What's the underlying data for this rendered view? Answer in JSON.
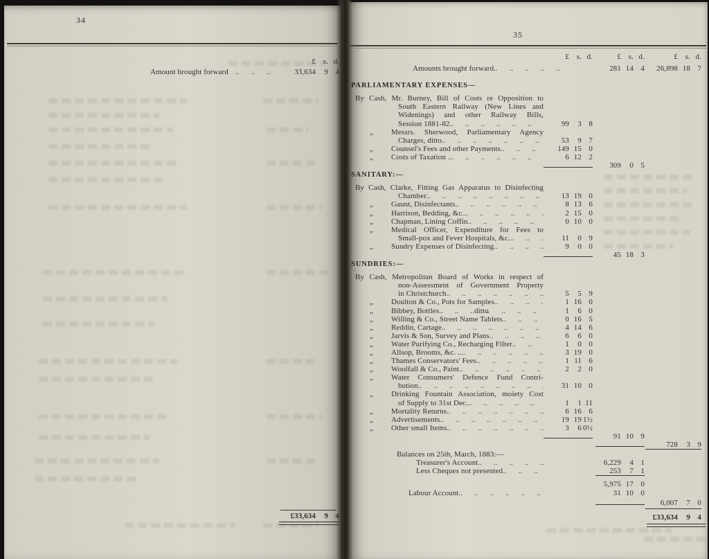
{
  "left_page": {
    "page_number": "34",
    "column_headers": {
      "pounds": "£",
      "shillings": "s.",
      "pence": "d."
    },
    "brought_forward": {
      "label": "Amount brought forward",
      "amount": [
        "33,634",
        "9",
        "4"
      ]
    },
    "total": [
      "£33,634",
      "9",
      "4"
    ]
  },
  "right_page": {
    "page_number": "35",
    "ditto_mark": "„",
    "leader_glyph": "..",
    "column_headers": [
      {
        "pounds": "£",
        "shillings": "s.",
        "pence": "d."
      },
      {
        "pounds": "£",
        "shillings": "s.",
        "pence": "d."
      },
      {
        "pounds": "£",
        "shillings": "s.",
        "pence": "d."
      }
    ],
    "brought_forward": {
      "label": "Amounts brought forward",
      "col2": [
        "281",
        "14",
        "4"
      ],
      "col3": [
        "26,898",
        "18",
        "7"
      ]
    },
    "sections": [
      {
        "title": "PARLIAMENTARY EXPENSES—",
        "rows": [
          {
            "indent": "bycash",
            "lines": [
              "By Cash, Mr. Burney, Bill of Costs re Opposition to",
              "South Eastern Railway (New Lines and",
              "Widenings) and other Railway Bills,",
              "Session 1881-82"
            ],
            "amount": [
              "99",
              "3",
              "8"
            ]
          },
          {
            "indent": "ditto",
            "lines": [
              "Messrs. Sherwood, Parliamentary Agency",
              "Charges, ditto"
            ],
            "amount": [
              "53",
              "9",
              "7"
            ]
          },
          {
            "indent": "ditto",
            "lines": [
              "Counsel's Fees and other Payments"
            ],
            "amount": [
              "149",
              "15",
              "0"
            ]
          },
          {
            "indent": "ditto",
            "lines": [
              "Costs of Taxation ."
            ],
            "amount": [
              "6",
              "12",
              "2"
            ]
          }
        ],
        "subtotal": [
          "309",
          "0",
          "5"
        ]
      },
      {
        "title": "SANITARY:—",
        "rows": [
          {
            "indent": "bycash",
            "lines": [
              "By Cash, Clarke, Fitting Gas Apparatus to Disinfecting",
              "Chamber"
            ],
            "amount": [
              "13",
              "19",
              "0"
            ]
          },
          {
            "indent": "ditto",
            "lines": [
              "Gaunt, Disinfectants"
            ],
            "amount": [
              "8",
              "13",
              "6"
            ]
          },
          {
            "indent": "ditto",
            "lines": [
              "Harrison, Bedding, &c."
            ],
            "amount": [
              "2",
              "15",
              "0"
            ]
          },
          {
            "indent": "ditto",
            "lines": [
              "Chapman, Lining Coffin"
            ],
            "amount": [
              "0",
              "10",
              "0"
            ]
          },
          {
            "indent": "ditto",
            "lines": [
              "Medical Officer, Expenditure for Fees to",
              "Small-pox and Fever Hospitals, &c."
            ],
            "amount": [
              "11",
              "0",
              "9"
            ]
          },
          {
            "indent": "ditto",
            "lines": [
              "Sundry Expenses of Disinfecting"
            ],
            "amount": [
              "9",
              "0",
              "0"
            ]
          }
        ],
        "subtotal": [
          "45",
          "18",
          "3"
        ]
      },
      {
        "title": "SUNDRIES:—",
        "rows": [
          {
            "indent": "bycash",
            "lines": [
              "By Cash, Metropolitan Board of Works in respect of",
              "non-Assessment of Government Property",
              "in Christchurch"
            ],
            "amount": [
              "5",
              "5",
              "9"
            ]
          },
          {
            "indent": "ditto",
            "lines": [
              "Doulton & Co., Pots for Samples"
            ],
            "amount": [
              "1",
              "16",
              "0"
            ]
          },
          {
            "indent": "ditto",
            "lines": [
              "Bibbey, Bottles"
            ],
            "mid": "ditto",
            "amount": [
              "1",
              "6",
              "0"
            ]
          },
          {
            "indent": "ditto",
            "lines": [
              "Willing & Co., Street Name Tablets"
            ],
            "amount": [
              "0",
              "16",
              "5"
            ]
          },
          {
            "indent": "ditto",
            "lines": [
              "Reddin, Cartage"
            ],
            "amount": [
              "4",
              "14",
              "6"
            ]
          },
          {
            "indent": "ditto",
            "lines": [
              "Jarvis & Son, Survey and Plans"
            ],
            "amount": [
              "6",
              "6",
              "0"
            ]
          },
          {
            "indent": "ditto",
            "lines": [
              "Water Purifying Co., Recharging Filter"
            ],
            "amount": [
              "1",
              "0",
              "0"
            ]
          },
          {
            "indent": "ditto",
            "lines": [
              "Allsop, Brooms, &c. .."
            ],
            "amount": [
              "3",
              "19",
              "0"
            ]
          },
          {
            "indent": "ditto",
            "lines": [
              "Thames Conservators' Fees"
            ],
            "amount": [
              "1",
              "11",
              "6"
            ]
          },
          {
            "indent": "ditto",
            "lines": [
              "Woolfall & Co., Paint"
            ],
            "amount": [
              "2",
              "2",
              "0"
            ]
          },
          {
            "indent": "ditto",
            "lines": [
              "Water Consumers' Defence Fund Contri-",
              "bution"
            ],
            "amount": [
              "31",
              "10",
              "0"
            ]
          },
          {
            "indent": "ditto",
            "lines": [
              "Drinking Fountain Association, moiety Cost",
              "of Supply to 31st Dec."
            ],
            "amount": [
              "1",
              "1",
              "11"
            ]
          },
          {
            "indent": "ditto",
            "lines": [
              "Mortality Returns"
            ],
            "amount": [
              "6",
              "16",
              "6"
            ]
          },
          {
            "indent": "ditto",
            "lines": [
              "Advertisements"
            ],
            "amount": [
              "19",
              "19",
              "1½"
            ]
          },
          {
            "indent": "ditto",
            "lines": [
              "Other small Items"
            ],
            "amount": [
              "3",
              "6",
              "0½"
            ]
          }
        ],
        "subtotal": [
          "91",
          "10",
          "9"
        ],
        "carry_total": [
          "728",
          "3",
          "9"
        ]
      }
    ],
    "balances": {
      "heading": "Balances on 25th, March, 1883:—",
      "rows": [
        {
          "label": "Treasurer's Account",
          "amount": [
            "6,229",
            "4",
            "1"
          ]
        },
        {
          "label": "Less Cheques not presented",
          "amount": [
            "253",
            "7",
            "1"
          ]
        },
        {
          "label": "",
          "rule_above": true,
          "amount": [
            "5,975",
            "17",
            "0"
          ]
        },
        {
          "label": "Labour Account",
          "amount": [
            "31",
            "10",
            "0"
          ]
        }
      ],
      "carry_total": [
        "6,007",
        "7",
        "0"
      ]
    },
    "grand_total": [
      "£33,634",
      "9",
      "4"
    ]
  }
}
